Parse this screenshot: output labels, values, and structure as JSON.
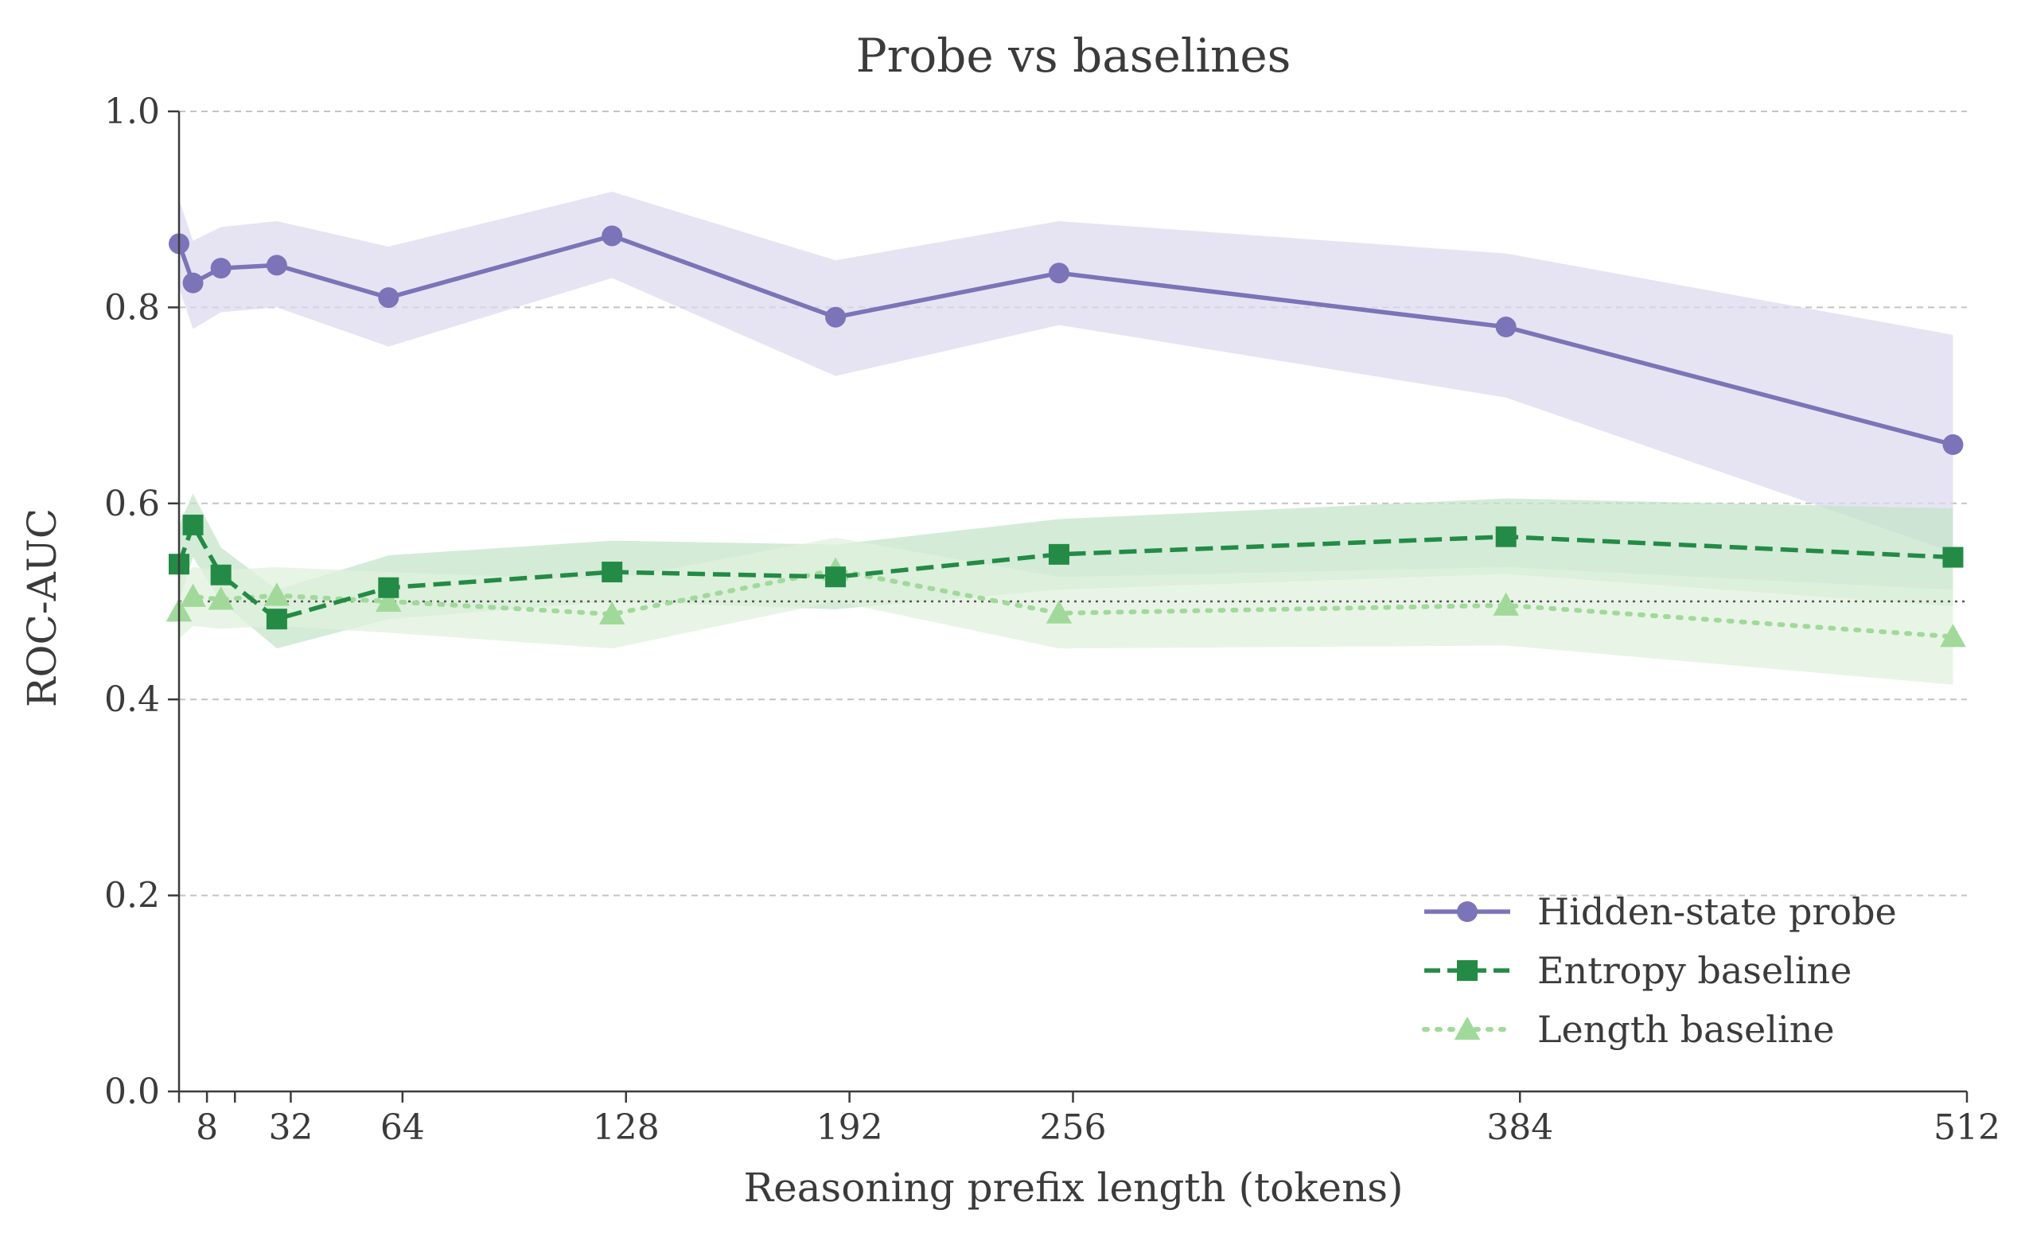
{
  "chart_data": {
    "type": "line",
    "title": "Probe vs baselines",
    "xlabel": "Reasoning prefix length (tokens)",
    "ylabel": "ROC-AUC",
    "xlim": [
      0,
      512
    ],
    "ylim": [
      0.0,
      1.0
    ],
    "x_ticks": [
      0,
      8,
      16,
      32,
      64,
      128,
      192,
      256,
      384,
      512
    ],
    "x_tick_labels": [
      "",
      "8",
      "",
      "32",
      "64",
      "128",
      "192",
      "256",
      "384",
      "512"
    ],
    "y_ticks": [
      0.0,
      0.2,
      0.4,
      0.6,
      0.8,
      1.0
    ],
    "y_tick_labels": [
      "0.0",
      "0.2",
      "0.4",
      "0.6",
      "0.8",
      "1.0"
    ],
    "grid": "y-dashed",
    "reference_line": 0.5,
    "legend_position": "lower-right",
    "x": [
      0,
      4,
      12,
      28,
      60,
      124,
      188,
      252,
      380,
      508
    ],
    "series": [
      {
        "name": "Hidden-state probe",
        "color": "#7b74b8",
        "band_color": "#dddaee",
        "marker": "circle",
        "line": "solid",
        "values": [
          0.865,
          0.825,
          0.84,
          0.843,
          0.81,
          0.873,
          0.79,
          0.835,
          0.78,
          0.66
        ],
        "lower": [
          0.82,
          0.778,
          0.795,
          0.8,
          0.76,
          0.83,
          0.73,
          0.782,
          0.708,
          0.55
        ],
        "upper": [
          0.91,
          0.868,
          0.882,
          0.888,
          0.862,
          0.918,
          0.848,
          0.888,
          0.855,
          0.772
        ]
      },
      {
        "name": "Entropy baseline",
        "color": "#238b45",
        "band_color": "#c3e3c9",
        "marker": "square",
        "line": "dashed",
        "values": [
          0.538,
          0.578,
          0.527,
          0.482,
          0.514,
          0.53,
          0.525,
          0.548,
          0.566,
          0.545
        ],
        "lower": [
          0.5,
          0.545,
          0.5,
          0.452,
          0.482,
          0.5,
          0.492,
          0.512,
          0.528,
          0.495
        ],
        "upper": [
          0.578,
          0.61,
          0.555,
          0.512,
          0.547,
          0.562,
          0.558,
          0.584,
          0.605,
          0.595
        ]
      },
      {
        "name": "Length baseline",
        "color": "#a1d99b",
        "band_color": "#dff1dc",
        "marker": "triangle",
        "line": "dotted",
        "values": [
          0.49,
          0.505,
          0.502,
          0.506,
          0.5,
          0.487,
          0.532,
          0.488,
          0.496,
          0.464
        ],
        "lower": [
          0.462,
          0.475,
          0.472,
          0.475,
          0.468,
          0.452,
          0.5,
          0.452,
          0.455,
          0.415
        ],
        "upper": [
          0.522,
          0.535,
          0.532,
          0.535,
          0.53,
          0.522,
          0.565,
          0.525,
          0.535,
          0.512
        ]
      }
    ]
  }
}
